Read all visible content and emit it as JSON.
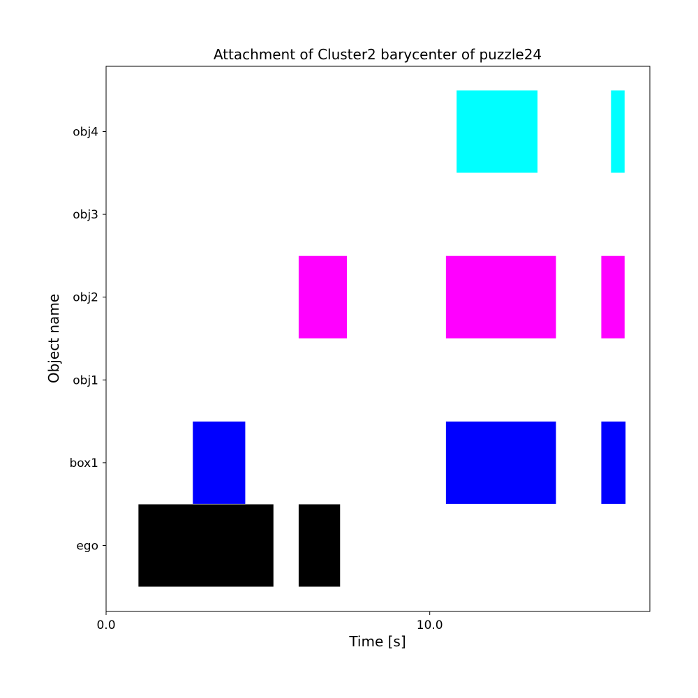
{
  "chart_data": {
    "type": "bar",
    "orientation": "horizontal-timeline",
    "title": "Attachment of Cluster2 barycenter of puzzle24",
    "xlabel": "Time [s]",
    "ylabel": "Object name",
    "xlim": [
      0.0,
      16.8
    ],
    "x_ticks": [
      {
        "value": 0.0,
        "label": "0.0"
      },
      {
        "value": 10.0,
        "label": "10.0"
      }
    ],
    "categories": [
      "ego",
      "box1",
      "obj1",
      "obj2",
      "obj3",
      "obj4"
    ],
    "grid": false,
    "legend": "none",
    "series": [
      {
        "category": "ego",
        "color": "#000000",
        "intervals": [
          [
            1.0,
            5.17
          ],
          [
            5.95,
            7.23
          ]
        ]
      },
      {
        "category": "box1",
        "color": "#0000ff",
        "intervals": [
          [
            2.68,
            4.3
          ],
          [
            10.5,
            13.9
          ],
          [
            15.3,
            16.05
          ]
        ]
      },
      {
        "category": "obj1",
        "color": "#000000",
        "intervals": []
      },
      {
        "category": "obj2",
        "color": "#ff00ff",
        "intervals": [
          [
            5.95,
            7.44
          ],
          [
            10.5,
            13.9
          ],
          [
            15.3,
            16.02
          ]
        ]
      },
      {
        "category": "obj3",
        "color": "#000000",
        "intervals": []
      },
      {
        "category": "obj4",
        "color": "#00ffff",
        "intervals": [
          [
            10.83,
            13.33
          ],
          [
            15.6,
            16.02
          ]
        ]
      }
    ]
  }
}
